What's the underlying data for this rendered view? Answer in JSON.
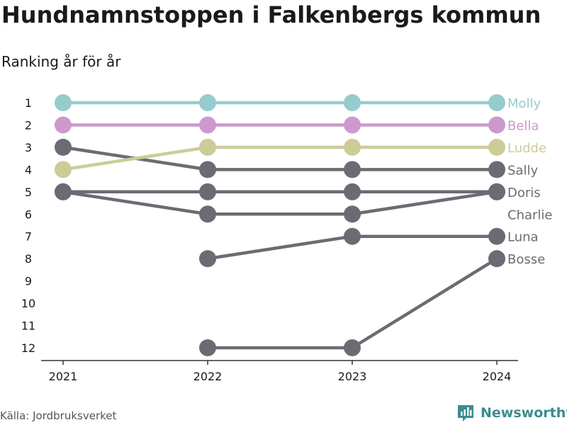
{
  "title": "Hundnamnstoppen i Falkenbergs kommun",
  "subtitle": "Ranking år för år",
  "source": "Källa: Jordbruksverket",
  "brand": "Newsworthy",
  "brand_icon": "newsworthy-logo-icon",
  "colors": {
    "highlight_1": "#96cccc",
    "highlight_2": "#cc99cc",
    "highlight_3": "#cccc99",
    "default": "#6b6b73",
    "axis": "#333333",
    "brand": "#3b8d8d"
  },
  "chart_data": {
    "type": "line",
    "title": "Hundnamnstoppen i Falkenbergs kommun",
    "subtitle": "Ranking år för år",
    "x": [
      "2021",
      "2022",
      "2023",
      "2024"
    ],
    "ylim": [
      1,
      12
    ],
    "y_reversed": true,
    "y_ticks": [
      "1",
      "2",
      "3",
      "4",
      "5",
      "6",
      "7",
      "8",
      "9",
      "10",
      "11",
      "12"
    ],
    "grid": false,
    "legend": "labels at line ends (right)",
    "series": [
      {
        "name": "Molly",
        "values": [
          1,
          1,
          1,
          1
        ],
        "color": "#96cccc"
      },
      {
        "name": "Bella",
        "values": [
          2,
          2,
          2,
          2
        ],
        "color": "#cc99cc"
      },
      {
        "name": "Ludde",
        "values": [
          4,
          3,
          3,
          3
        ],
        "color": "#cccc99"
      },
      {
        "name": "Sally",
        "values": [
          3,
          4,
          4,
          4
        ],
        "color": "#6b6b73"
      },
      {
        "name": "Doris",
        "values": [
          5,
          5,
          5,
          5
        ],
        "color": "#6b6b73"
      },
      {
        "name": "Charlie",
        "values": [
          5,
          6,
          6,
          5
        ],
        "color": "#6b6b73"
      },
      {
        "name": "Luna",
        "values": [
          null,
          8,
          7,
          7
        ],
        "color": "#6b6b73"
      },
      {
        "name": "Bosse",
        "values": [
          null,
          12,
          12,
          8
        ],
        "color": "#6b6b73"
      }
    ],
    "end_labels": [
      {
        "text": "Molly",
        "rank": 1,
        "color": "#96cccc"
      },
      {
        "text": "Bella",
        "rank": 2,
        "color": "#cc99cc"
      },
      {
        "text": "Ludde",
        "rank": 3,
        "color": "#cccc99"
      },
      {
        "text": "Sally",
        "rank": 4,
        "color": "#6b6b73"
      },
      {
        "text": "Doris",
        "rank": 5,
        "color": "#6b6b73"
      },
      {
        "text": "Charlie",
        "rank": 6,
        "color": "#6b6b73"
      },
      {
        "text": "Luna",
        "rank": 7,
        "color": "#6b6b73"
      },
      {
        "text": "Bosse",
        "rank": 8,
        "color": "#6b6b73"
      }
    ]
  }
}
